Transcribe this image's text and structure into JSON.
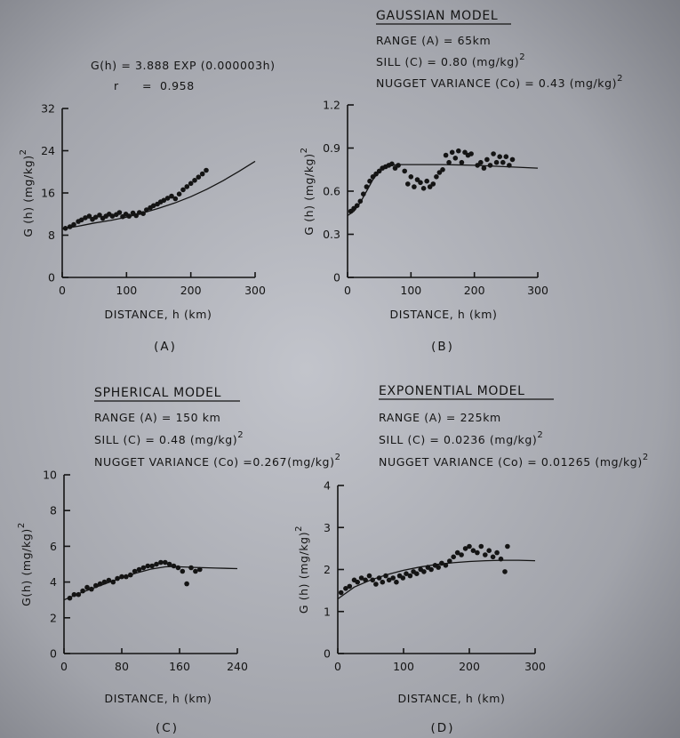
{
  "chart_data": [
    {
      "id": "A",
      "type": "scatter",
      "panel_label": "(A)",
      "equation": "G(h) = 3.888 EXP (0.000003h)",
      "r_label": "r",
      "r_value": "0.958",
      "xlabel": "DISTANCE, h (km)",
      "ylabel": "G (h) (mg/kg)",
      "ylabel_superscript": "2",
      "xlim": [
        0,
        300
      ],
      "ylim": [
        0,
        32
      ],
      "xticks": [
        0,
        100,
        200,
        300
      ],
      "yticks": [
        0,
        8,
        16,
        24,
        32
      ],
      "series": [
        {
          "kind": "points",
          "x": [
            5,
            12,
            18,
            25,
            30,
            36,
            42,
            47,
            52,
            58,
            63,
            68,
            73,
            78,
            84,
            89,
            94,
            99,
            104,
            110,
            115,
            120,
            126,
            131,
            137,
            142,
            148,
            153,
            158,
            164,
            170,
            176,
            182,
            188,
            194,
            200,
            206,
            212,
            218,
            224
          ],
          "y": [
            9.3,
            9.6,
            10.0,
            10.6,
            10.9,
            11.3,
            11.6,
            11.0,
            11.4,
            11.8,
            11.2,
            11.6,
            12.0,
            11.6,
            11.9,
            12.3,
            11.5,
            12.0,
            11.6,
            12.2,
            11.7,
            12.3,
            12.1,
            12.8,
            13.2,
            13.6,
            13.9,
            14.3,
            14.6,
            15.0,
            15.4,
            14.9,
            15.8,
            16.6,
            17.2,
            17.8,
            18.4,
            19.0,
            19.6,
            20.3
          ]
        },
        {
          "kind": "curve",
          "x": [
            0,
            25,
            50,
            75,
            100,
            125,
            150,
            175,
            200,
            225,
            250,
            275,
            300
          ],
          "y": [
            9.2,
            9.7,
            10.3,
            10.8,
            11.4,
            12.2,
            13.1,
            14.1,
            15.3,
            16.7,
            18.3,
            20.1,
            22.0
          ]
        }
      ]
    },
    {
      "id": "B",
      "type": "scatter",
      "panel_label": "(B)",
      "title": "GAUSSIAN MODEL",
      "params": [
        "RANGE (A) = 65km",
        "SILL (C) = 0.80 (mg/kg)",
        "NUGGET VARIANCE (Co) = 0.43 (mg/kg)"
      ],
      "params_superscripts": [
        "",
        "2",
        "2"
      ],
      "xlabel": "DISTANCE, h (km)",
      "ylabel": "G (h) (mg/kg)",
      "ylabel_superscript": "2",
      "xlim": [
        0,
        300
      ],
      "ylim": [
        0,
        1.2
      ],
      "xticks": [
        0,
        100,
        200,
        300
      ],
      "yticks": [
        0,
        0.3,
        0.6,
        0.9,
        1.2
      ],
      "ytick_labels": [
        "0",
        "0.3",
        "0.6",
        "0.9",
        "1.2"
      ],
      "series": [
        {
          "kind": "points",
          "x": [
            5,
            10,
            15,
            20,
            25,
            30,
            35,
            40,
            45,
            50,
            55,
            60,
            65,
            70,
            75,
            80,
            90,
            95,
            100,
            105,
            110,
            115,
            120,
            125,
            130,
            135,
            140,
            145,
            150,
            155,
            160,
            165,
            170,
            175,
            180,
            185,
            190,
            195,
            205,
            210,
            215,
            220,
            225,
            230,
            235,
            240,
            245,
            250,
            255,
            260
          ],
          "y": [
            0.46,
            0.48,
            0.5,
            0.53,
            0.58,
            0.63,
            0.67,
            0.7,
            0.72,
            0.74,
            0.76,
            0.77,
            0.78,
            0.79,
            0.76,
            0.78,
            0.74,
            0.65,
            0.7,
            0.63,
            0.68,
            0.66,
            0.62,
            0.67,
            0.63,
            0.65,
            0.7,
            0.73,
            0.75,
            0.85,
            0.8,
            0.87,
            0.83,
            0.88,
            0.8,
            0.87,
            0.85,
            0.86,
            0.78,
            0.8,
            0.76,
            0.82,
            0.78,
            0.86,
            0.8,
            0.84,
            0.8,
            0.84,
            0.78,
            0.82
          ]
        },
        {
          "kind": "curve",
          "x": [
            0,
            10,
            20,
            30,
            40,
            50,
            60,
            70,
            80,
            100,
            150,
            200,
            250,
            300
          ],
          "y": [
            0.43,
            0.46,
            0.52,
            0.6,
            0.68,
            0.74,
            0.77,
            0.78,
            0.785,
            0.785,
            0.785,
            0.78,
            0.77,
            0.76
          ]
        }
      ]
    },
    {
      "id": "C",
      "type": "scatter",
      "panel_label": "(C)",
      "title": "SPHERICAL MODEL",
      "params": [
        "RANGE (A) = 150 km",
        "SILL (C) = 0.48 (mg/kg)",
        "NUGGET VARIANCE (Co) =0.267(mg/kg)"
      ],
      "params_superscripts": [
        "",
        "2",
        "2"
      ],
      "xlabel": "DISTANCE, h (km)",
      "ylabel": "G(h) (mg/kg)",
      "ylabel_superscript": "2",
      "xlim": [
        0,
        240
      ],
      "ylim": [
        0,
        10
      ],
      "xticks": [
        0,
        80,
        160,
        240
      ],
      "yticks": [
        0,
        2,
        4,
        6,
        8,
        10
      ],
      "series": [
        {
          "kind": "points",
          "x": [
            8,
            14,
            20,
            26,
            32,
            38,
            44,
            50,
            56,
            62,
            68,
            74,
            80,
            86,
            92,
            98,
            104,
            110,
            116,
            122,
            128,
            134,
            140,
            146,
            152,
            158,
            164,
            170,
            176,
            182,
            188
          ],
          "y": [
            3.1,
            3.3,
            3.3,
            3.5,
            3.7,
            3.6,
            3.8,
            3.9,
            4.0,
            4.1,
            4.0,
            4.2,
            4.3,
            4.3,
            4.4,
            4.6,
            4.7,
            4.8,
            4.9,
            4.9,
            5.0,
            5.1,
            5.1,
            5.0,
            4.9,
            4.8,
            4.6,
            3.9,
            4.8,
            4.6,
            4.7
          ]
        },
        {
          "kind": "curve",
          "x": [
            0,
            20,
            40,
            60,
            80,
            100,
            120,
            140,
            150,
            180,
            210,
            240
          ],
          "y": [
            3.0,
            3.35,
            3.65,
            3.95,
            4.25,
            4.5,
            4.72,
            4.85,
            4.87,
            4.82,
            4.78,
            4.75
          ]
        }
      ]
    },
    {
      "id": "D",
      "type": "scatter",
      "panel_label": "(D)",
      "title": "EXPONENTIAL MODEL",
      "params": [
        "RANGE (A) = 225km",
        "SILL (C) = 0.0236 (mg/kg)",
        "NUGGET VARIANCE (Co) = 0.01265 (mg/kg)"
      ],
      "params_superscripts": [
        "",
        "2",
        "2"
      ],
      "xlabel": "DISTANCE, h (km)",
      "ylabel": "G (h) (mg/kg)",
      "ylabel_superscript": "2",
      "xlim": [
        0,
        300
      ],
      "ylim": [
        0,
        4
      ],
      "xticks": [
        0,
        100,
        200,
        300
      ],
      "yticks": [
        0,
        1,
        2,
        3,
        4
      ],
      "series": [
        {
          "kind": "points",
          "x": [
            5,
            12,
            18,
            25,
            30,
            36,
            42,
            48,
            53,
            58,
            63,
            68,
            73,
            78,
            84,
            89,
            94,
            99,
            104,
            110,
            115,
            120,
            126,
            131,
            137,
            142,
            148,
            153,
            158,
            164,
            170,
            176,
            182,
            188,
            194,
            200,
            206,
            212,
            218,
            224,
            230,
            236,
            242,
            248,
            254,
            258
          ],
          "y": [
            1.45,
            1.55,
            1.6,
            1.75,
            1.7,
            1.8,
            1.75,
            1.85,
            1.75,
            1.65,
            1.8,
            1.7,
            1.85,
            1.75,
            1.8,
            1.7,
            1.85,
            1.8,
            1.9,
            1.85,
            1.95,
            1.9,
            2.0,
            1.95,
            2.05,
            2.0,
            2.1,
            2.05,
            2.15,
            2.1,
            2.2,
            2.3,
            2.4,
            2.35,
            2.5,
            2.55,
            2.45,
            2.4,
            2.55,
            2.35,
            2.45,
            2.3,
            2.4,
            2.25,
            1.95,
            2.55
          ]
        },
        {
          "kind": "curve",
          "x": [
            0,
            25,
            50,
            75,
            100,
            125,
            150,
            175,
            200,
            225,
            250,
            275,
            300
          ],
          "y": [
            1.3,
            1.58,
            1.75,
            1.88,
            1.98,
            2.06,
            2.12,
            2.16,
            2.19,
            2.21,
            2.22,
            2.22,
            2.21
          ]
        }
      ]
    }
  ]
}
